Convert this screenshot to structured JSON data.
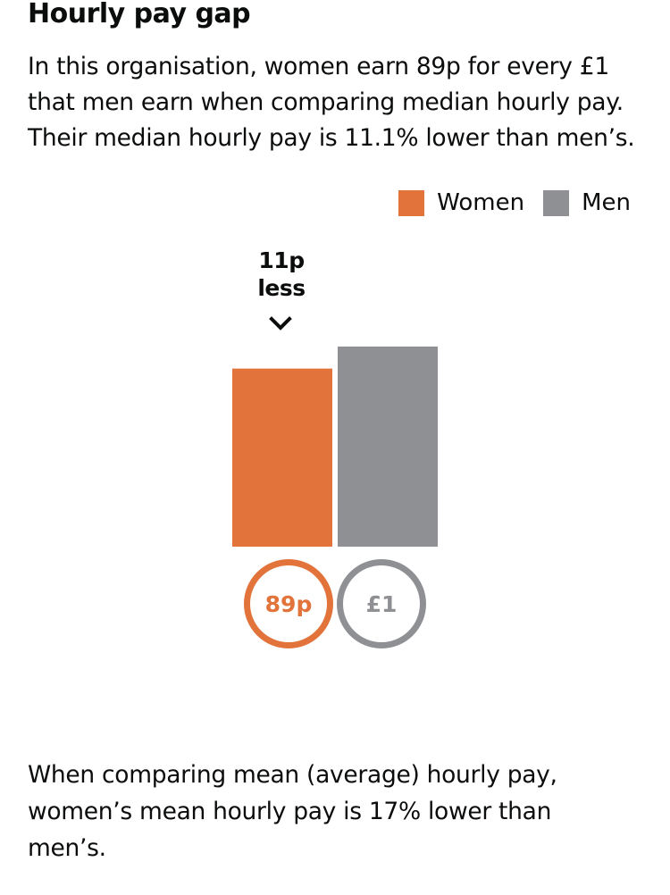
{
  "section_title": "Hourly pay gap",
  "intro_text": "In this organisation, women earn 89p for every £1 that men earn when comparing median hourly pay. Their median hourly pay is 11.1% lower than men’s.",
  "outro_text": "When comparing mean (average) hourly pay, women’s mean hourly pay is 17% lower than men’s.",
  "colors": {
    "women": "#e2733a",
    "men": "#8e9094",
    "text": "#0b0c0c"
  },
  "chart_data": {
    "type": "bar",
    "categories": [
      "Women",
      "Men"
    ],
    "values": [
      89,
      100
    ],
    "unit": "pence per £1",
    "ylim": [
      0,
      100
    ],
    "legend": [
      "Women",
      "Men"
    ],
    "legend_position": "top-right",
    "value_labels": [
      "89p",
      "£1"
    ],
    "annotation": {
      "line1": "11p",
      "line2": "less",
      "icon": "chevron-down-icon"
    }
  }
}
